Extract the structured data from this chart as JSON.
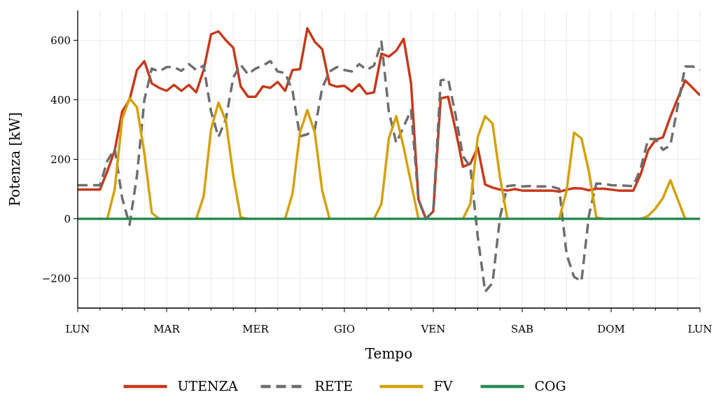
{
  "chart_data": {
    "type": "line",
    "xlabel": "Tempo",
    "ylabel": "Potenza [kW]",
    "ylim": [
      -300,
      700
    ],
    "yticks": [
      -200,
      0,
      200,
      400,
      600
    ],
    "grid": true,
    "legend": "bottom",
    "categories": [
      "LUN",
      null,
      null,
      null,
      null,
      null,
      null,
      null,
      null,
      null,
      null,
      null,
      "MAR",
      null,
      null,
      null,
      null,
      null,
      null,
      null,
      null,
      null,
      null,
      null,
      "MER",
      null,
      null,
      null,
      null,
      null,
      null,
      null,
      null,
      null,
      null,
      null,
      "GIO",
      null,
      null,
      null,
      null,
      null,
      null,
      null,
      null,
      null,
      null,
      null,
      "VEN",
      null,
      null,
      null,
      null,
      null,
      null,
      null,
      null,
      null,
      null,
      null,
      "SAB",
      null,
      null,
      null,
      null,
      null,
      null,
      null,
      null,
      null,
      null,
      null,
      "DOM",
      null,
      null,
      null,
      null,
      null,
      null,
      null,
      null,
      null,
      null,
      null,
      "LUN"
    ],
    "series": [
      {
        "name": "UTENZA",
        "color": "#c8391c",
        "line_style": "solid",
        "values": [
          98,
          98,
          98,
          98,
          160,
          230,
          360,
          400,
          500,
          530,
          455,
          440,
          430,
          450,
          430,
          450,
          425,
          500,
          620,
          630,
          600,
          575,
          445,
          410,
          410,
          445,
          440,
          460,
          430,
          500,
          503,
          640,
          595,
          570,
          452,
          444,
          447,
          428,
          452,
          420,
          425,
          555,
          545,
          565,
          605,
          455,
          65,
          0,
          25,
          405,
          410,
          300,
          175,
          185,
          240,
          115,
          105,
          98,
          95,
          100,
          95,
          95,
          95,
          95,
          95,
          91,
          98,
          103,
          102,
          96,
          101,
          101,
          98,
          95,
          95,
          95,
          150,
          230,
          265,
          274,
          343,
          405,
          465,
          440,
          415
        ]
      },
      {
        "name": "RETE",
        "color": "#6e6e6e",
        "line_style": "dashed",
        "values": [
          113,
          113,
          113,
          113,
          195,
          235,
          70,
          -20,
          145,
          400,
          505,
          495,
          510,
          510,
          497,
          520,
          500,
          515,
          360,
          275,
          335,
          475,
          518,
          485,
          505,
          515,
          530,
          495,
          490,
          430,
          277,
          284,
          300,
          440,
          495,
          510,
          500,
          495,
          520,
          500,
          515,
          595,
          360,
          255,
          310,
          365,
          65,
          0,
          25,
          465,
          470,
          350,
          210,
          175,
          -60,
          -245,
          -215,
          5,
          110,
          113,
          109,
          110,
          109,
          109,
          108,
          101,
          -120,
          -195,
          -210,
          10,
          118,
          118,
          113,
          112,
          111,
          110,
          170,
          268,
          268,
          232,
          247,
          380,
          512,
          512,
          500
        ]
      },
      {
        "name": "FV",
        "color": "#d4a20e",
        "line_style": "solid",
        "values": [
          null,
          null,
          null,
          null,
          0,
          100,
          335,
          405,
          375,
          220,
          20,
          0,
          null,
          null,
          null,
          null,
          0,
          75,
          300,
          390,
          330,
          145,
          5,
          0,
          null,
          null,
          null,
          null,
          0,
          85,
          290,
          365,
          290,
          95,
          0,
          null,
          null,
          null,
          null,
          null,
          0,
          50,
          270,
          345,
          240,
          120,
          0,
          null,
          null,
          null,
          null,
          null,
          0,
          50,
          275,
          345,
          320,
          140,
          0,
          null,
          null,
          null,
          null,
          null,
          null,
          0,
          95,
          290,
          270,
          160,
          5,
          0,
          null,
          null,
          null,
          null,
          0,
          10,
          35,
          70,
          130,
          65,
          0,
          null,
          null
        ]
      },
      {
        "name": "COG",
        "color": "#2a8a55",
        "line_style": "solid",
        "values": [
          0,
          0,
          0,
          0,
          0,
          0,
          0,
          0,
          0,
          0,
          0,
          0,
          0,
          0,
          0,
          0,
          0,
          0,
          0,
          0,
          0,
          0,
          0,
          0,
          0,
          0,
          0,
          0,
          0,
          0,
          0,
          0,
          0,
          0,
          0,
          0,
          0,
          0,
          0,
          0,
          0,
          0,
          0,
          0,
          0,
          0,
          0,
          0,
          0,
          0,
          0,
          0,
          0,
          0,
          0,
          0,
          0,
          0,
          0,
          0,
          0,
          0,
          0,
          0,
          0,
          0,
          0,
          0,
          0,
          0,
          0,
          0,
          0,
          0,
          0,
          0,
          0,
          0,
          0,
          0,
          0,
          0,
          0,
          0,
          0
        ]
      }
    ]
  }
}
